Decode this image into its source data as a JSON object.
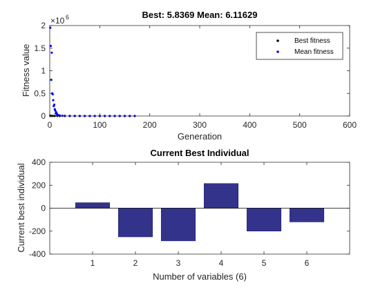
{
  "figure": {
    "background": "#ffffff"
  },
  "chart_data": [
    {
      "type": "scatter",
      "title": "Best: 5.8369 Mean: 6.11629",
      "xlabel": "Generation",
      "ylabel": "Fitness value",
      "exponent_label": "×10",
      "exponent_power": "6",
      "xlim": [
        0,
        600
      ],
      "ylim": [
        0,
        2
      ],
      "xticks": [
        0,
        100,
        200,
        300,
        400,
        500,
        600
      ],
      "yticks": [
        0,
        0.5,
        1,
        1.5,
        2
      ],
      "ytick_labels": [
        "0",
        "0.5",
        "1",
        "1.5",
        "2"
      ],
      "legend": {
        "position": "top-right"
      },
      "series": [
        {
          "name": "Best fitness",
          "color": "#000000",
          "x": [
            1,
            3,
            6,
            10,
            15,
            20,
            30,
            40,
            50,
            60,
            70,
            80,
            90,
            100,
            110,
            120,
            130,
            140,
            150,
            160,
            170
          ],
          "y": [
            0.004,
            0.003,
            0.002,
            0.0015,
            0.001,
            0.0008,
            0.0006,
            0.0005,
            0.0004,
            0.0003,
            0.0002,
            0.0001,
            0.0001,
            8e-05,
            7e-05,
            6e-05,
            5e-05,
            4e-05,
            3e-05,
            2e-05,
            1e-05
          ]
        },
        {
          "name": "Mean fitness",
          "color": "#0000ff",
          "x": [
            1,
            2,
            3,
            4,
            5,
            6,
            7,
            8,
            9,
            10,
            11,
            12,
            13,
            14,
            15,
            16,
            18,
            20,
            25,
            30,
            40,
            50,
            60,
            70,
            80,
            90,
            100,
            110,
            120,
            130,
            140,
            150,
            160,
            170
          ],
          "y": [
            1.95,
            1.55,
            0.8,
            1.4,
            0.5,
            0.48,
            0.35,
            0.22,
            0.25,
            0.15,
            0.12,
            0.06,
            0.08,
            0.05,
            0.03,
            0.02,
            0.015,
            0.01,
            0.006,
            0.004,
            0.002,
            0.0015,
            0.001,
            0.0008,
            0.0006,
            0.0005,
            0.0004,
            0.0003,
            0.0002,
            0.0002,
            0.0001,
            0.0001,
            0.0001,
            0.0001
          ]
        }
      ]
    },
    {
      "type": "bar",
      "title": "Current Best Individual",
      "xlabel": "Number of variables (6)",
      "ylabel": "Current best individual",
      "categories": [
        "1",
        "2",
        "3",
        "4",
        "5",
        "6"
      ],
      "values": [
        48,
        -250,
        -285,
        215,
        -200,
        -120
      ],
      "ylim": [
        -400,
        400
      ],
      "yticks": [
        -400,
        -200,
        0,
        200,
        400
      ],
      "xlim": [
        0,
        7
      ],
      "bar_color": "#33338c"
    }
  ]
}
